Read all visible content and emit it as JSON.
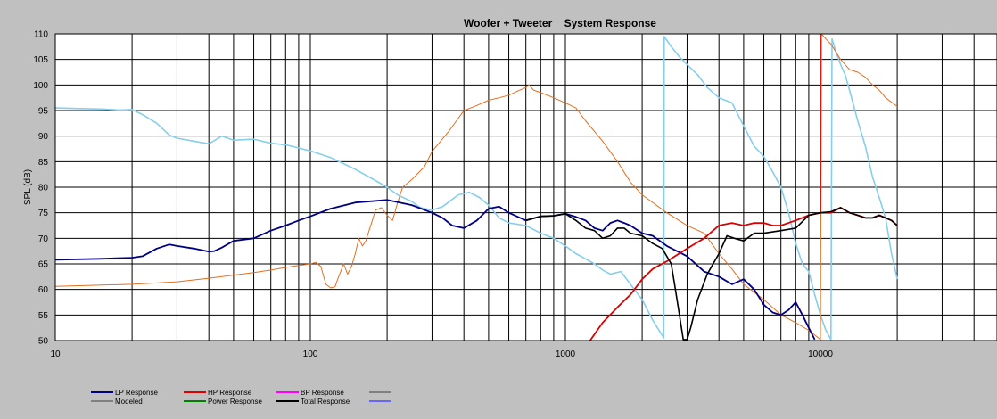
{
  "chart_data": {
    "type": "line",
    "title": "Woofer + Tweeter    System Response",
    "ylabel": "SPL (dB)",
    "xlabel": "",
    "x_scale": "log",
    "xlim": [
      10,
      50000
    ],
    "ylim": [
      50,
      110
    ],
    "grid": true,
    "x_tick_labels": [
      "10",
      "100",
      "1000",
      "10000"
    ],
    "x_tick_values": [
      10,
      100,
      1000,
      10000
    ],
    "y_ticks": [
      50,
      55,
      60,
      65,
      70,
      75,
      80,
      85,
      90,
      95,
      100,
      105,
      110
    ],
    "legend_position": "bottom",
    "legend": [
      {
        "label": "LP Response",
        "color": "#000080"
      },
      {
        "label": "HP Response",
        "color": "#dd0000"
      },
      {
        "label": "BP Response",
        "color": "#ff00ff"
      },
      {
        "label": "",
        "color": "#808080"
      },
      {
        "label": "Modeled",
        "color": "#808080"
      },
      {
        "label": "Power Response",
        "color": "#008000"
      },
      {
        "label": "Total Response",
        "color": "#000000"
      },
      {
        "label": "",
        "color": "#6666ff"
      }
    ],
    "series": [
      {
        "color": "#87ceeb",
        "width": 1.6,
        "points": [
          [
            10,
            95.5
          ],
          [
            12,
            95.4
          ],
          [
            15,
            95.3
          ],
          [
            18,
            95.1
          ],
          [
            20,
            95.2
          ],
          [
            22,
            94.2
          ],
          [
            25,
            92.5
          ],
          [
            28,
            90.2
          ],
          [
            30,
            89.6
          ],
          [
            35,
            89.0
          ],
          [
            40,
            88.5
          ],
          [
            45,
            90.0
          ],
          [
            50,
            89.2
          ],
          [
            60,
            89.4
          ],
          [
            70,
            88.6
          ],
          [
            80,
            88.3
          ],
          [
            100,
            87.1
          ],
          [
            120,
            85.8
          ],
          [
            150,
            83.5
          ],
          [
            180,
            81.3
          ],
          [
            200,
            80.0
          ],
          [
            220,
            78.5
          ],
          [
            250,
            77.2
          ],
          [
            270,
            76.0
          ],
          [
            300,
            75.5
          ],
          [
            330,
            76.2
          ],
          [
            380,
            78.5
          ],
          [
            420,
            79.0
          ],
          [
            460,
            78.0
          ],
          [
            500,
            76.5
          ],
          [
            550,
            74.0
          ],
          [
            600,
            73.0
          ],
          [
            700,
            72.5
          ],
          [
            800,
            71.0
          ],
          [
            900,
            70.0
          ],
          [
            1000,
            68.5
          ],
          [
            1100,
            67.0
          ],
          [
            1200,
            66.0
          ],
          [
            1300,
            65.0
          ],
          [
            1400,
            63.8
          ],
          [
            1500,
            63.0
          ],
          [
            1650,
            63.5
          ],
          [
            1800,
            61.0
          ],
          [
            2000,
            58.0
          ],
          [
            2200,
            54.0
          ],
          [
            2430,
            50.5
          ],
          [
            2440,
            109.5
          ],
          [
            2600,
            107.5
          ],
          [
            2800,
            105.5
          ],
          [
            3000,
            104.0
          ],
          [
            3300,
            102.0
          ],
          [
            3600,
            99.5
          ],
          [
            4000,
            97.5
          ],
          [
            4500,
            96.5
          ],
          [
            5000,
            92.0
          ],
          [
            5500,
            88.0
          ],
          [
            6000,
            86.0
          ],
          [
            6500,
            83.0
          ],
          [
            7000,
            80.0
          ],
          [
            7500,
            75.0
          ],
          [
            8000,
            69.0
          ],
          [
            8500,
            65.0
          ],
          [
            9000,
            63.5
          ],
          [
            9500,
            59.0
          ],
          [
            10000,
            55.0
          ],
          [
            10500,
            52.0
          ],
          [
            11000,
            50.2
          ],
          [
            11100,
            109.0
          ],
          [
            11500,
            106.5
          ],
          [
            12000,
            104.0
          ],
          [
            12500,
            102.0
          ],
          [
            13000,
            99.0
          ],
          [
            14000,
            93.0
          ],
          [
            15000,
            88.0
          ],
          [
            16000,
            82.0
          ],
          [
            17000,
            78.0
          ],
          [
            18000,
            74.0
          ],
          [
            19000,
            67.0
          ],
          [
            20000,
            62.0
          ]
        ]
      },
      {
        "color": "#e07020",
        "width": 1.0,
        "points": [
          [
            10,
            60.6
          ],
          [
            20,
            61.0
          ],
          [
            30,
            61.5
          ],
          [
            40,
            62.2
          ],
          [
            50,
            62.8
          ],
          [
            60,
            63.3
          ],
          [
            70,
            63.8
          ],
          [
            80,
            64.3
          ],
          [
            90,
            64.7
          ],
          [
            100,
            65.0
          ],
          [
            105,
            65.3
          ],
          [
            110,
            64.5
          ],
          [
            115,
            61.0
          ],
          [
            120,
            60.3
          ],
          [
            125,
            60.5
          ],
          [
            128,
            62.0
          ],
          [
            135,
            65.0
          ],
          [
            140,
            63.0
          ],
          [
            145,
            64.5
          ],
          [
            150,
            67.0
          ],
          [
            155,
            70.0
          ],
          [
            160,
            68.5
          ],
          [
            165,
            69.5
          ],
          [
            175,
            73.5
          ],
          [
            180,
            75.5
          ],
          [
            190,
            76.0
          ],
          [
            200,
            74.5
          ],
          [
            210,
            73.5
          ],
          [
            220,
            77.0
          ],
          [
            230,
            80.0
          ],
          [
            250,
            81.5
          ],
          [
            280,
            84.0
          ],
          [
            300,
            87.0
          ],
          [
            350,
            91.0
          ],
          [
            400,
            95.0
          ],
          [
            450,
            96.0
          ],
          [
            500,
            97.0
          ],
          [
            550,
            97.5
          ],
          [
            600,
            98.0
          ],
          [
            650,
            98.8
          ],
          [
            700,
            99.5
          ],
          [
            720,
            100.0
          ],
          [
            750,
            99.0
          ],
          [
            800,
            98.5
          ],
          [
            900,
            97.5
          ],
          [
            1000,
            96.5
          ],
          [
            1100,
            95.5
          ],
          [
            1200,
            93.0
          ],
          [
            1400,
            89.0
          ],
          [
            1600,
            85.0
          ],
          [
            1800,
            81.0
          ],
          [
            2000,
            78.5
          ],
          [
            2500,
            75.0
          ],
          [
            3000,
            72.5
          ],
          [
            3500,
            71.0
          ],
          [
            4000,
            67.0
          ],
          [
            4500,
            64.0
          ],
          [
            5000,
            61.0
          ],
          [
            6000,
            58.0
          ],
          [
            7000,
            55.0
          ],
          [
            8000,
            53.5
          ],
          [
            9000,
            52.0
          ],
          [
            10000,
            50.2
          ],
          [
            10100,
            110.0
          ],
          [
            10500,
            109.0
          ],
          [
            11000,
            108.0
          ],
          [
            12000,
            105.0
          ],
          [
            13000,
            103.0
          ],
          [
            14000,
            102.5
          ],
          [
            15000,
            101.5
          ],
          [
            16000,
            100.0
          ],
          [
            17000,
            99.0
          ],
          [
            18000,
            97.5
          ],
          [
            20000,
            95.8
          ]
        ]
      },
      {
        "color": "#000080",
        "width": 1.8,
        "points": [
          [
            10,
            65.8
          ],
          [
            15,
            66.0
          ],
          [
            20,
            66.2
          ],
          [
            22,
            66.5
          ],
          [
            25,
            68.0
          ],
          [
            28,
            68.8
          ],
          [
            30,
            68.5
          ],
          [
            35,
            68.0
          ],
          [
            40,
            67.4
          ],
          [
            42,
            67.5
          ],
          [
            45,
            68.2
          ],
          [
            50,
            69.5
          ],
          [
            60,
            70.0
          ],
          [
            70,
            71.5
          ],
          [
            80,
            72.5
          ],
          [
            90,
            73.5
          ],
          [
            100,
            74.3
          ],
          [
            120,
            75.8
          ],
          [
            150,
            77.0
          ],
          [
            200,
            77.5
          ],
          [
            250,
            76.5
          ],
          [
            300,
            75.0
          ],
          [
            330,
            74.0
          ],
          [
            360,
            72.5
          ],
          [
            400,
            72.0
          ],
          [
            450,
            73.5
          ],
          [
            500,
            75.8
          ],
          [
            550,
            76.2
          ],
          [
            600,
            75.0
          ],
          [
            700,
            73.5
          ],
          [
            800,
            74.3
          ],
          [
            900,
            74.4
          ],
          [
            1000,
            74.8
          ],
          [
            1100,
            74.2
          ],
          [
            1200,
            73.5
          ],
          [
            1300,
            72.0
          ],
          [
            1400,
            71.5
          ],
          [
            1500,
            73.0
          ],
          [
            1600,
            73.5
          ],
          [
            1700,
            73.0
          ],
          [
            1800,
            72.5
          ],
          [
            2000,
            71.0
          ],
          [
            2200,
            70.5
          ],
          [
            2500,
            68.5
          ],
          [
            3000,
            66.5
          ],
          [
            3500,
            63.5
          ],
          [
            4000,
            62.5
          ],
          [
            4500,
            61.0
          ],
          [
            5000,
            62.0
          ],
          [
            5500,
            60.0
          ],
          [
            6000,
            57.0
          ],
          [
            6500,
            55.5
          ],
          [
            7000,
            55.0
          ],
          [
            7500,
            56.0
          ],
          [
            8000,
            57.5
          ],
          [
            8500,
            55.0
          ],
          [
            9000,
            52.5
          ],
          [
            9500,
            50.2
          ]
        ]
      },
      {
        "color": "#dd0000",
        "width": 1.8,
        "points": [
          [
            1250,
            50.0
          ],
          [
            1400,
            53.5
          ],
          [
            1600,
            56.5
          ],
          [
            1800,
            59.0
          ],
          [
            2000,
            62.0
          ],
          [
            2200,
            64.0
          ],
          [
            2500,
            65.5
          ],
          [
            3000,
            68.0
          ],
          [
            3500,
            70.0
          ],
          [
            4000,
            72.5
          ],
          [
            4500,
            73.0
          ],
          [
            5000,
            72.5
          ],
          [
            5500,
            73.0
          ],
          [
            6000,
            73.0
          ],
          [
            6500,
            72.5
          ],
          [
            7000,
            72.5
          ],
          [
            8000,
            73.5
          ],
          [
            9000,
            74.5
          ],
          [
            10000,
            75.0
          ],
          [
            11000,
            75.0
          ],
          [
            12000,
            76.0
          ],
          [
            13000,
            75.0
          ],
          [
            14000,
            74.5
          ],
          [
            15000,
            74.0
          ],
          [
            16000,
            74.0
          ],
          [
            17000,
            74.5
          ],
          [
            18000,
            74.0
          ],
          [
            19000,
            73.5
          ],
          [
            20000,
            72.5
          ]
        ]
      },
      {
        "color": "#dd0000",
        "width": 1.6,
        "points": [
          [
            10000,
            75.0
          ],
          [
            10000,
            110.0
          ]
        ]
      },
      {
        "color": "#000000",
        "width": 1.6,
        "points": [
          [
            700,
            73.5
          ],
          [
            800,
            74.3
          ],
          [
            900,
            74.4
          ],
          [
            1000,
            74.8
          ],
          [
            1100,
            73.5
          ],
          [
            1200,
            72.0
          ],
          [
            1300,
            71.5
          ],
          [
            1400,
            70.0
          ],
          [
            1500,
            70.5
          ],
          [
            1600,
            72.0
          ],
          [
            1700,
            72.0
          ],
          [
            1800,
            71.0
          ],
          [
            2000,
            70.5
          ],
          [
            2200,
            69.0
          ],
          [
            2400,
            68.0
          ],
          [
            2600,
            65.0
          ],
          [
            2700,
            60.0
          ],
          [
            2800,
            55.0
          ],
          [
            2900,
            50.2
          ],
          [
            3000,
            50.2
          ],
          [
            3100,
            52.5
          ],
          [
            3300,
            58.0
          ],
          [
            3600,
            63.0
          ],
          [
            4000,
            67.0
          ],
          [
            4300,
            70.5
          ],
          [
            4600,
            70.0
          ],
          [
            5000,
            69.5
          ],
          [
            5500,
            71.0
          ],
          [
            6000,
            71.0
          ],
          [
            7000,
            71.5
          ],
          [
            8000,
            72.0
          ],
          [
            9000,
            74.5
          ],
          [
            10000,
            75.0
          ],
          [
            11000,
            75.2
          ],
          [
            12000,
            76.0
          ],
          [
            13000,
            75.0
          ],
          [
            14000,
            74.5
          ],
          [
            15000,
            74.0
          ],
          [
            16000,
            74.0
          ],
          [
            17000,
            74.5
          ],
          [
            18000,
            74.0
          ],
          [
            19000,
            73.5
          ],
          [
            20000,
            72.5
          ]
        ]
      }
    ]
  }
}
